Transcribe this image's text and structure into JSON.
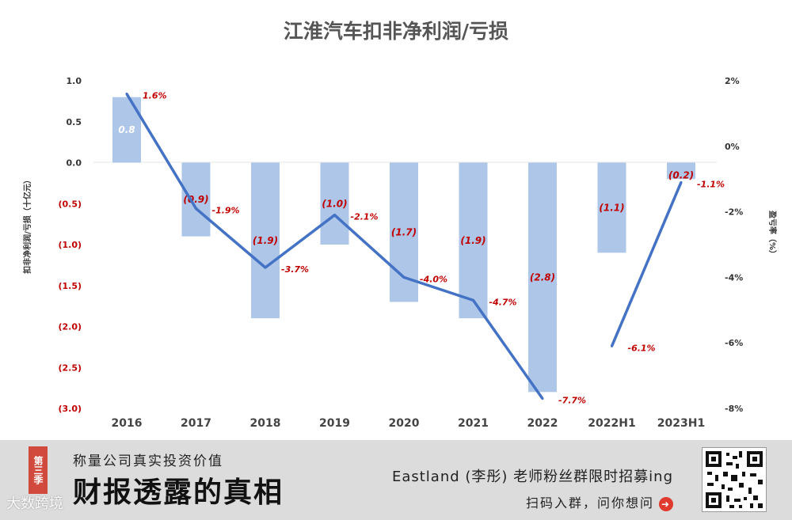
{
  "chart_data": {
    "type": "bar",
    "title": "江淮汽车扣非净利润/亏损",
    "categories": [
      "2016",
      "2017",
      "2018",
      "2019",
      "2020",
      "2021",
      "2022",
      "2022H1",
      "2023H1"
    ],
    "series": [
      {
        "name": "扣非净利润/亏损",
        "type": "bar",
        "axis": "left",
        "values": [
          0.8,
          -0.9,
          -1.9,
          -1.0,
          -1.7,
          -1.9,
          -2.8,
          -1.1,
          -0.2
        ],
        "labels": [
          "0.8",
          "(0.9)",
          "(1.9)",
          "(1.0)",
          "(1.7)",
          "(1.9)",
          "(2.8)",
          "(1.1)",
          "(0.2)"
        ]
      },
      {
        "name": "盈亏率",
        "type": "line",
        "axis": "right",
        "values": [
          1.6,
          -1.9,
          -3.7,
          -2.1,
          -4.0,
          -4.7,
          -7.7,
          -6.1,
          -1.1
        ],
        "labels": [
          "1.6%",
          "-1.9%",
          "-3.7%",
          "-2.1%",
          "-4.0%",
          "-4.7%",
          "-7.7%",
          "-6.1%",
          "-1.1%"
        ],
        "segments": [
          [
            0,
            6
          ],
          [
            7,
            8
          ]
        ]
      }
    ],
    "ylabel": "扣非净利润/亏损（十亿元）",
    "ylabel_right": "盈亏率（%）",
    "ylim": [
      -3.0,
      1.0
    ],
    "ylim_right": [
      -8,
      2
    ],
    "left_ticks": [
      {
        "value": 1.0,
        "label": "1.0"
      },
      {
        "value": 0.5,
        "label": "0.5"
      },
      {
        "value": 0.0,
        "label": "0.0"
      },
      {
        "value": -0.5,
        "label": "(0.5)"
      },
      {
        "value": -1.0,
        "label": "(1.0)"
      },
      {
        "value": -1.5,
        "label": "(1.5)"
      },
      {
        "value": -2.0,
        "label": "(2.0)"
      },
      {
        "value": -2.5,
        "label": "(2.5)"
      },
      {
        "value": -3.0,
        "label": "(3.0)"
      }
    ],
    "right_ticks": [
      {
        "value": 2,
        "label": "2%"
      },
      {
        "value": 0,
        "label": "0%"
      },
      {
        "value": -2,
        "label": "-2%"
      },
      {
        "value": -4,
        "label": "-4%"
      },
      {
        "value": -6,
        "label": "-6%"
      },
      {
        "value": -8,
        "label": "-8%"
      }
    ],
    "colors": {
      "bar": "#aec6e8",
      "line": "#4472c4",
      "negative_text": "#c00000",
      "positive_tick": "#333333"
    },
    "grid": false,
    "legend": "none"
  },
  "banner": {
    "season": "第三季",
    "subtitle": "称量公司真实投资价值",
    "main_title": "财报透露的真相",
    "recruit_text": "Eastland (李彤) 老师粉丝群限时招募ing",
    "scan_text": "扫码入群，问你想问",
    "watermark": "大数跨境",
    "arrow_icon": "arrow-right-circle-icon",
    "qr_icon": "qr-code-icon"
  }
}
